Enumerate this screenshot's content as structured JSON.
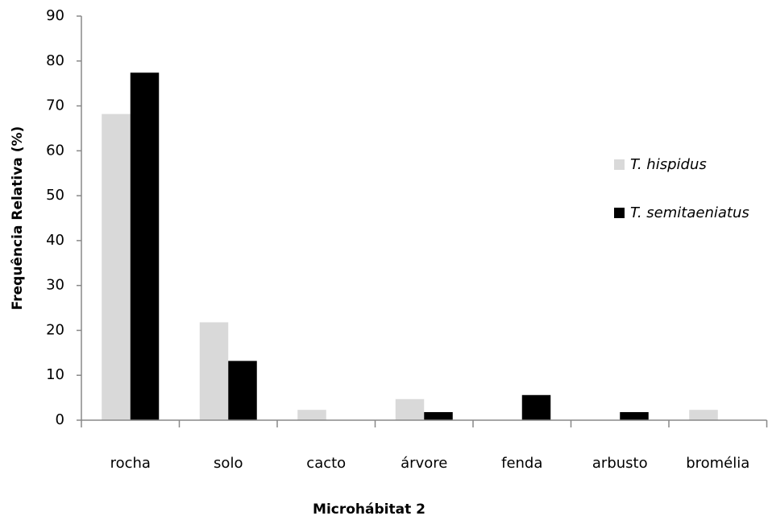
{
  "chart_data": {
    "type": "bar",
    "x_label": "Microhábitat 2",
    "y_label": "Frequência Relativa (%)",
    "categories": [
      "rocha",
      "solo",
      "cacto",
      "árvore",
      "fenda",
      "arbusto",
      "bromélia"
    ],
    "series": [
      {
        "name": "T. hispidus",
        "color": "#d9d9d9",
        "values": [
          68.2,
          21.8,
          2.3,
          4.7,
          0,
          0,
          2.3
        ]
      },
      {
        "name": "T. semitaeniatus",
        "color": "#000000",
        "values": [
          77.4,
          13.2,
          0,
          1.8,
          5.6,
          1.8,
          0
        ]
      }
    ],
    "ylim": [
      0,
      90
    ],
    "yticks": [
      0,
      10,
      20,
      30,
      40,
      50,
      60,
      70,
      80,
      90
    ],
    "grid": false,
    "legend": "right"
  }
}
